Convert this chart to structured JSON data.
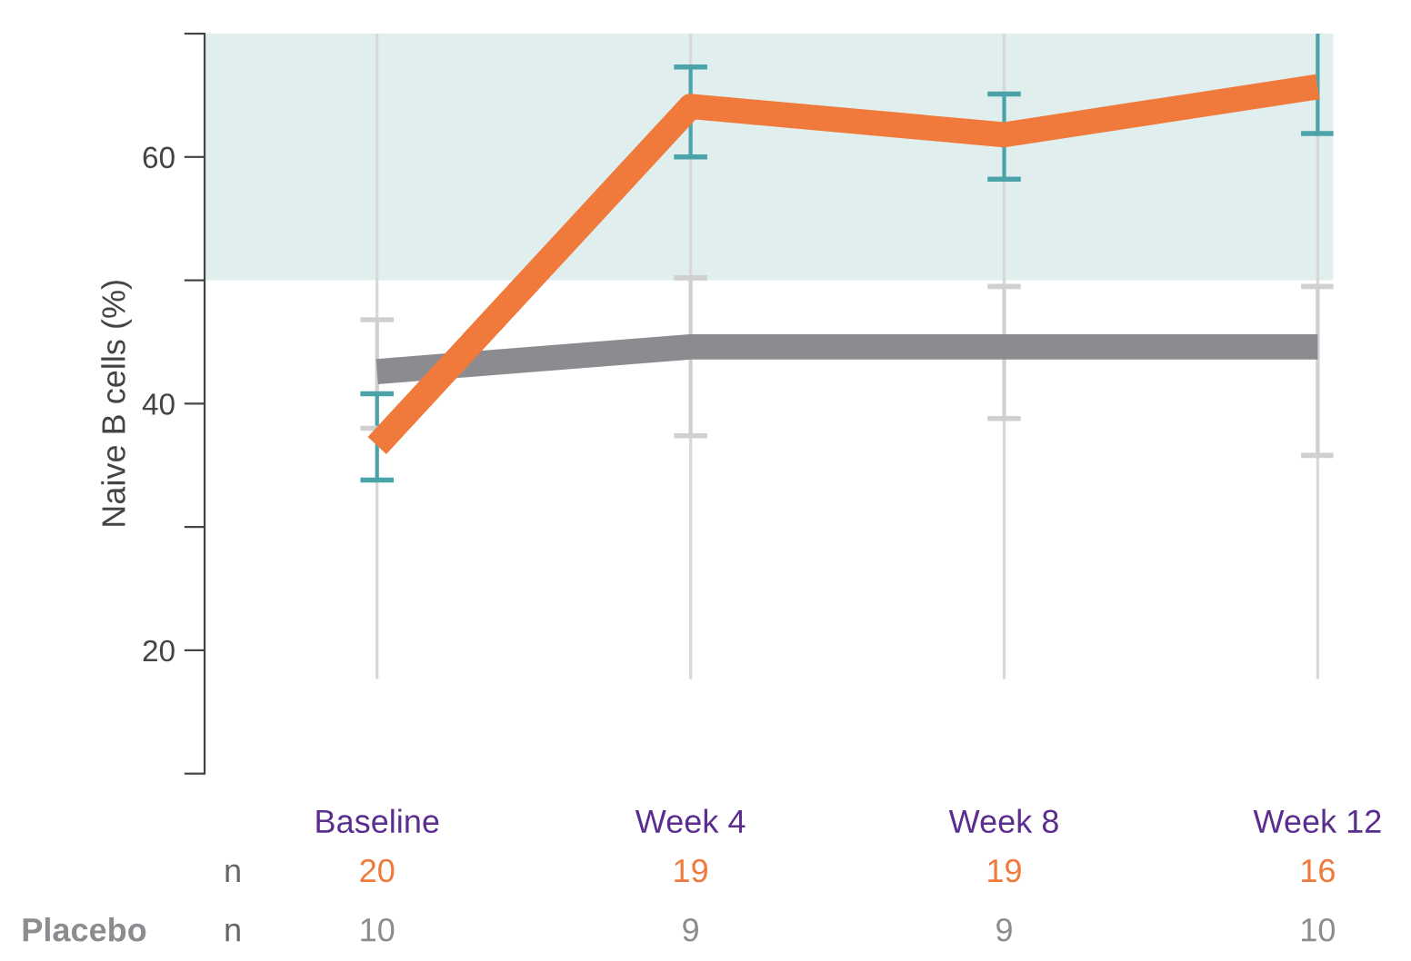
{
  "chart_data": {
    "type": "line",
    "ylabel": "Naive B cells (%)",
    "categories": [
      "Baseline",
      "Week 4",
      "Week 8",
      "Week 12"
    ],
    "series": [
      {
        "color": "#f07a3c",
        "values": [
          36.6,
          64.1,
          61.8,
          65.7
        ],
        "errors": [
          [
            33.8,
            40.8
          ],
          [
            60.0,
            67.3
          ],
          [
            58.2,
            65.1
          ],
          [
            61.9,
            70.3
          ]
        ]
      },
      {
        "name": "Placebo",
        "color": "#8c8c90",
        "values": [
          42.6,
          44.6,
          44.6,
          44.6
        ],
        "errors": [
          [
            38.0,
            46.8
          ],
          [
            37.4,
            50.2
          ],
          [
            38.8,
            49.5
          ],
          [
            35.8,
            49.5
          ]
        ]
      }
    ],
    "ylim": [
      10,
      70
    ],
    "yticks": [
      {
        "value": 10,
        "label": null
      },
      20,
      {
        "value": 30,
        "label": null
      },
      40,
      {
        "value": 50,
        "label": null
      },
      60,
      {
        "value": 70,
        "label": null
      }
    ],
    "bands": [
      {
        "axis": "y",
        "from": 50,
        "to": 70,
        "color": "#e1eeee"
      }
    ],
    "grid": "x",
    "legend": false,
    "marker": "none",
    "line_style": "solid",
    "annotations": [
      "n",
      "20",
      "19",
      "19",
      "16",
      "n",
      "10",
      "9",
      "9",
      "10"
    ]
  }
}
